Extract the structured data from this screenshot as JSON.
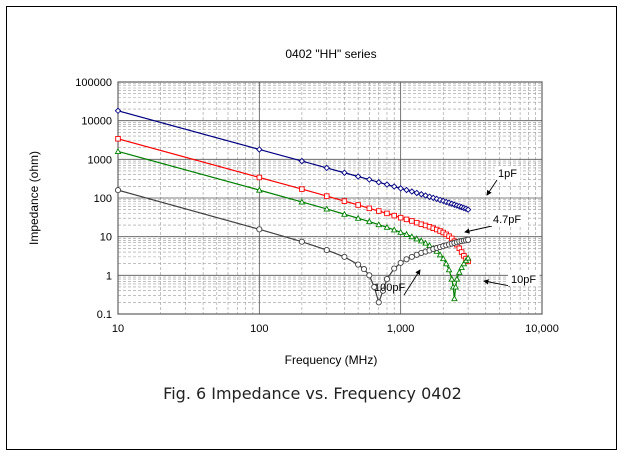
{
  "chart_data": {
    "type": "line",
    "title": "0402 \"HH\" series",
    "xlabel": "Frequency (MHz)",
    "ylabel": "Impedance (ohm)",
    "x_scale": "log",
    "y_scale": "log",
    "xlim": [
      10,
      10000
    ],
    "ylim": [
      0.1,
      100000
    ],
    "x_ticks": [
      10,
      100,
      1000,
      10000
    ],
    "x_tick_labels": [
      "10",
      "100",
      "1,000",
      "10,000"
    ],
    "y_ticks": [
      0.1,
      1,
      10,
      100,
      1000,
      10000,
      100000
    ],
    "y_tick_labels": [
      "0.1",
      "1",
      "10",
      "100",
      "1000",
      "10000",
      "100000"
    ],
    "grid": true,
    "series": [
      {
        "name": "1pF",
        "color": "#000080",
        "marker": "diamond",
        "x": [
          10,
          100,
          200,
          300,
          400,
          500,
          600,
          700,
          800,
          900,
          1000,
          1100,
          1200,
          1300,
          1400,
          1500,
          1600,
          1700,
          1800,
          1900,
          2000,
          2100,
          2200,
          2300,
          2400,
          2500,
          2600,
          2700,
          2800,
          2900,
          3000
        ],
        "y": [
          18000,
          1800,
          900,
          600,
          450,
          360,
          300,
          255,
          223,
          198,
          177,
          161,
          147,
          135,
          125,
          116,
          108,
          101,
          95,
          89,
          84,
          79,
          75,
          71,
          67,
          64,
          61,
          58,
          55,
          53,
          50
        ]
      },
      {
        "name": "4.7pF",
        "color": "#ff0000",
        "marker": "square",
        "x": [
          10,
          100,
          200,
          300,
          400,
          500,
          600,
          700,
          800,
          900,
          1000,
          1100,
          1200,
          1300,
          1400,
          1500,
          1600,
          1700,
          1800,
          1900,
          2000,
          2100,
          2200,
          2300,
          2400,
          2500,
          2600,
          2700,
          2800,
          2900,
          3000
        ],
        "y": [
          3400,
          340,
          170,
          112,
          83,
          66,
          54,
          46,
          40,
          35,
          31,
          28,
          25.5,
          23,
          21,
          19.5,
          18,
          16.5,
          15.3,
          14,
          12.8,
          11.5,
          10.3,
          9,
          7.6,
          6.2,
          5,
          4,
          3.2,
          2.7,
          2.3
        ]
      },
      {
        "name": "10pF",
        "color": "#008000",
        "marker": "triangle",
        "x": [
          10,
          100,
          200,
          300,
          400,
          500,
          600,
          700,
          800,
          900,
          1000,
          1100,
          1200,
          1300,
          1400,
          1500,
          1600,
          1700,
          1800,
          1900,
          2000,
          2100,
          2200,
          2300,
          2350,
          2400,
          2450,
          2500,
          2600,
          2700,
          2800,
          2900,
          3000
        ],
        "y": [
          1600,
          160,
          79,
          52,
          38,
          30,
          24.5,
          20.5,
          17.5,
          15,
          13,
          11.5,
          10,
          8.8,
          7.8,
          6.8,
          5.9,
          5,
          4.2,
          3.4,
          2.7,
          2,
          1.4,
          0.8,
          0.5,
          0.25,
          0.5,
          0.8,
          1.2,
          1.6,
          2,
          2.4,
          2.8
        ]
      },
      {
        "name": "100pF",
        "color": "#404040",
        "marker": "circle",
        "x": [
          10,
          100,
          200,
          300,
          400,
          500,
          550,
          600,
          650,
          700,
          750,
          800,
          900,
          1000,
          1100,
          1200,
          1300,
          1400,
          1500,
          1600,
          1700,
          1800,
          1900,
          2000,
          2100,
          2200,
          2300,
          2400,
          2500,
          2600,
          2700,
          2800,
          2900,
          3000
        ],
        "y": [
          160,
          15.5,
          7.4,
          4.5,
          3,
          1.9,
          1.45,
          1,
          0.5,
          0.2,
          0.4,
          0.8,
          1.5,
          2.1,
          2.6,
          3,
          3.4,
          3.8,
          4.1,
          4.4,
          4.8,
          5.1,
          5.4,
          5.7,
          6,
          6.3,
          6.6,
          6.9,
          7.2,
          7.5,
          7.7,
          7.9,
          8.1,
          8.3
        ]
      }
    ],
    "annotations": [
      {
        "text": "1pF",
        "series": "1pF"
      },
      {
        "text": "4.7pF",
        "series": "4.7pF"
      },
      {
        "text": "10pF",
        "series": "10pF"
      },
      {
        "text": "100pF",
        "series": "100pF"
      }
    ]
  },
  "caption": "Fig. 6 Impedance vs. Frequency 0402"
}
